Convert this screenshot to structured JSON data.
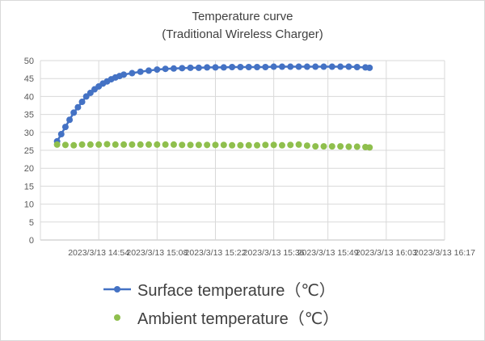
{
  "chart_data": {
    "type": "scatter",
    "title": "Temperature curve",
    "subtitle": "(Traditional Wireless Charger)",
    "xlabel": "",
    "ylabel": "",
    "ylim": [
      0,
      50
    ],
    "yticks": [
      0,
      5,
      10,
      15,
      20,
      25,
      30,
      35,
      40,
      45,
      50
    ],
    "xlim": [
      "2023/3/13 14:40",
      "2023/3/13 16:17"
    ],
    "x_tick_labels": [
      "2023/3/13 14:54",
      "2023/3/13 15:08",
      "2023/3/13 15:22",
      "2023/3/13 15:36",
      "2023/3/13 15:49",
      "2023/3/13 16:03",
      "2023/3/13 16:17"
    ],
    "grid": true,
    "legend_position": "bottom",
    "series": [
      {
        "name": "Surface temperature（℃）",
        "color": "#4472c4",
        "marker": "circle",
        "line": true,
        "points": [
          [
            "14:44",
            27.5
          ],
          [
            "14:45",
            29.5
          ],
          [
            "14:46",
            31.5
          ],
          [
            "14:47",
            33.5
          ],
          [
            "14:48",
            35.5
          ],
          [
            "14:49",
            37
          ],
          [
            "14:50",
            38.5
          ],
          [
            "14:51",
            40
          ],
          [
            "14:52",
            41
          ],
          [
            "14:53",
            42
          ],
          [
            "14:54",
            42.8
          ],
          [
            "14:55",
            43.6
          ],
          [
            "14:56",
            44.2
          ],
          [
            "14:57",
            44.8
          ],
          [
            "14:58",
            45.3
          ],
          [
            "14:59",
            45.7
          ],
          [
            "15:00",
            46.1
          ],
          [
            "15:02",
            46.5
          ],
          [
            "15:04",
            46.9
          ],
          [
            "15:06",
            47.2
          ],
          [
            "15:08",
            47.5
          ],
          [
            "15:10",
            47.7
          ],
          [
            "15:12",
            47.8
          ],
          [
            "15:14",
            47.9
          ],
          [
            "15:16",
            48
          ],
          [
            "15:18",
            48
          ],
          [
            "15:20",
            48.1
          ],
          [
            "15:22",
            48.1
          ],
          [
            "15:24",
            48.1
          ],
          [
            "15:26",
            48.2
          ],
          [
            "15:28",
            48.2
          ],
          [
            "15:30",
            48.2
          ],
          [
            "15:32",
            48.2
          ],
          [
            "15:34",
            48.2
          ],
          [
            "15:36",
            48.3
          ],
          [
            "15:38",
            48.3
          ],
          [
            "15:40",
            48.3
          ],
          [
            "15:42",
            48.3
          ],
          [
            "15:44",
            48.3
          ],
          [
            "15:46",
            48.3
          ],
          [
            "15:48",
            48.3
          ],
          [
            "15:50",
            48.3
          ],
          [
            "15:52",
            48.3
          ],
          [
            "15:54",
            48.3
          ],
          [
            "15:56",
            48.2
          ],
          [
            "15:58",
            48.1
          ],
          [
            "15:59",
            48
          ]
        ]
      },
      {
        "name": "Ambient temperature（℃）",
        "color": "#8fbf4d",
        "marker": "circle",
        "line": false,
        "points": [
          [
            "14:44",
            26.6
          ],
          [
            "14:46",
            26.5
          ],
          [
            "14:48",
            26.4
          ],
          [
            "14:50",
            26.6
          ],
          [
            "14:52",
            26.6
          ],
          [
            "14:54",
            26.6
          ],
          [
            "14:56",
            26.7
          ],
          [
            "14:58",
            26.6
          ],
          [
            "15:00",
            26.6
          ],
          [
            "15:02",
            26.6
          ],
          [
            "15:04",
            26.6
          ],
          [
            "15:06",
            26.6
          ],
          [
            "15:08",
            26.6
          ],
          [
            "15:10",
            26.6
          ],
          [
            "15:12",
            26.6
          ],
          [
            "15:14",
            26.5
          ],
          [
            "15:16",
            26.5
          ],
          [
            "15:18",
            26.5
          ],
          [
            "15:20",
            26.5
          ],
          [
            "15:22",
            26.5
          ],
          [
            "15:24",
            26.5
          ],
          [
            "15:26",
            26.4
          ],
          [
            "15:28",
            26.4
          ],
          [
            "15:30",
            26.4
          ],
          [
            "15:32",
            26.4
          ],
          [
            "15:34",
            26.5
          ],
          [
            "15:36",
            26.5
          ],
          [
            "15:38",
            26.4
          ],
          [
            "15:40",
            26.5
          ],
          [
            "15:42",
            26.6
          ],
          [
            "15:44",
            26.3
          ],
          [
            "15:46",
            26.1
          ],
          [
            "15:48",
            26.1
          ],
          [
            "15:50",
            26.1
          ],
          [
            "15:52",
            26.1
          ],
          [
            "15:54",
            26.0
          ],
          [
            "15:56",
            26.0
          ],
          [
            "15:58",
            25.9
          ],
          [
            "15:59",
            25.8
          ]
        ]
      }
    ]
  }
}
